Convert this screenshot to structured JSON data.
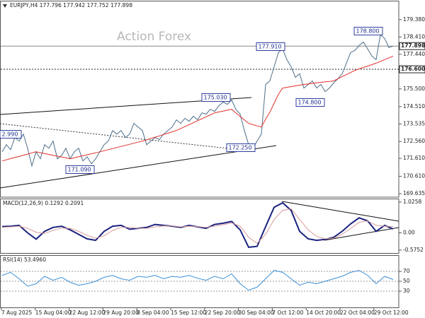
{
  "chart_data": [
    {
      "type": "price",
      "title": "EURJPY,H4  177.796 177.942 177.752 177.898",
      "watermark": "Action Forex",
      "ylim": [
        169.44,
        180.4
      ],
      "yticks": [
        {
          "value": 179.38,
          "label": "179.380"
        },
        {
          "value": 178.41,
          "label": "178.410"
        },
        {
          "value": 177.44,
          "label": "177.440"
        },
        {
          "value": 175.5,
          "label": "175.500"
        },
        {
          "value": 174.51,
          "label": "174.510"
        },
        173.535,
        {
          "value": 172.56,
          "label": "172.560"
        },
        {
          "value": 171.61,
          "label": "171.610"
        },
        {
          "value": 170.61,
          "label": "170.610"
        },
        169.635
      ],
      "levels": [
        {
          "value": 177.898,
          "label": "177.898"
        },
        {
          "value": 176.6,
          "label": "176.600"
        }
      ],
      "annotations": [
        "2.990",
        "171.090",
        "175.030",
        "172.250",
        "177.910",
        "178.800",
        "174.800"
      ],
      "series": [
        {
          "color": "#4d6f8a",
          "values": [
            171.98,
            172.38,
            172.1,
            172.78,
            172.58,
            172.97,
            172.18,
            171.19,
            171.98,
            171.59,
            172.38,
            172.18,
            172.58,
            171.59,
            171.78,
            172.18,
            171.59,
            171.98,
            172.18,
            171.47,
            171.7,
            171.31,
            171.59,
            171.98,
            172.38,
            172.58,
            173.17,
            172.97,
            173.17,
            172.78,
            172.97,
            173.57,
            173.37,
            173.17,
            172.38,
            172.58,
            172.78,
            172.66,
            172.97,
            173.17,
            173.37,
            173.77,
            173.57,
            173.85,
            173.69,
            173.97,
            173.77,
            174.16,
            174.09,
            174.36,
            174.24,
            174.56,
            174.76,
            174.64,
            174.88,
            174.36,
            174.09,
            173.17,
            172.38,
            172.18,
            172.58,
            172.97,
            175.75,
            175.95,
            176.74,
            177.54,
            177.74,
            177.14,
            176.74,
            176.15,
            176.35,
            175.55,
            175.75,
            175.95,
            175.55,
            175.75,
            175.35,
            175.55,
            175.83,
            176.07,
            176.35,
            176.94,
            177.54,
            177.66,
            177.93,
            178.13,
            177.74,
            177.34,
            177.14,
            178.53,
            178.33,
            177.82,
            177.9
          ]
        },
        {
          "color": "#e0302c",
          "values": [
            171.47,
            171.53,
            171.6,
            171.66,
            171.72,
            171.79,
            171.85,
            171.92,
            171.98,
            171.93,
            171.88,
            171.83,
            171.78,
            171.74,
            171.69,
            171.64,
            171.59,
            171.65,
            171.7,
            171.76,
            171.81,
            171.87,
            171.92,
            171.98,
            172.04,
            172.1,
            172.16,
            172.22,
            172.28,
            172.34,
            172.4,
            172.46,
            172.52,
            172.58,
            172.65,
            172.73,
            172.8,
            172.87,
            172.95,
            173.02,
            173.1,
            173.17,
            173.28,
            173.39,
            173.5,
            173.61,
            173.72,
            173.83,
            173.94,
            174.05,
            174.16,
            174.21,
            174.26,
            174.31,
            174.36,
            174.16,
            173.96,
            173.77,
            173.57,
            173.5,
            173.43,
            173.37,
            173.8,
            174.2,
            174.7,
            175.2,
            175.55,
            175.59,
            175.63,
            175.67,
            175.71,
            175.75,
            175.78,
            175.81,
            175.84,
            175.87,
            175.9,
            175.92,
            175.95,
            176.07,
            176.19,
            176.3,
            176.42,
            176.54,
            176.62,
            176.7,
            176.78,
            176.86,
            176.94,
            177.04,
            177.14,
            177.24,
            177.34
          ]
        }
      ]
    },
    {
      "type": "macd",
      "title": "MACD(12,26,9) 0.1292 0.2091",
      "ylim": [
        -0.672,
        1.119
      ],
      "yticks": [
        1.0258,
        {
          "value": 0,
          "label": "0.00"
        },
        -0.5752
      ],
      "series": [
        {
          "color": "#1a237e",
          "values": [
            0.21,
            0.22,
            0.25,
            0.0,
            -0.21,
            0.05,
            0.18,
            0.22,
            0.1,
            -0.05,
            -0.2,
            -0.25,
            0.05,
            0.22,
            0.25,
            0.12,
            0.15,
            0.18,
            0.28,
            0.25,
            0.22,
            0.18,
            0.25,
            0.2,
            0.15,
            0.28,
            0.32,
            0.38,
            0.1,
            -0.48,
            -0.45,
            0.21,
            0.85,
            1.0,
            0.75,
            0.05,
            -0.2,
            -0.25,
            -0.22,
            -0.15,
            0.05,
            0.3,
            0.5,
            0.4,
            0.05,
            0.25,
            0.13
          ]
        },
        {
          "color": "#d99a9a",
          "values": [
            0.18,
            0.2,
            0.22,
            0.15,
            0.02,
            -0.02,
            0.08,
            0.16,
            0.15,
            0.05,
            -0.08,
            -0.18,
            -0.1,
            0.08,
            0.18,
            0.18,
            0.15,
            0.15,
            0.2,
            0.23,
            0.23,
            0.2,
            0.22,
            0.21,
            0.18,
            0.22,
            0.27,
            0.33,
            0.22,
            -0.15,
            -0.35,
            -0.05,
            0.45,
            0.75,
            0.8,
            0.45,
            0.1,
            -0.12,
            -0.2,
            -0.18,
            -0.05,
            0.15,
            0.35,
            0.4,
            0.25,
            0.22,
            0.21
          ]
        }
      ]
    },
    {
      "type": "rsi",
      "title": "RSI(14) 53.4960",
      "ylim": [
        0,
        100
      ],
      "yticks": [
        70,
        50,
        30
      ],
      "grid": true,
      "series": [
        {
          "color": "#3b8fd6",
          "values": [
            62,
            68,
            55,
            40,
            45,
            60,
            52,
            58,
            48,
            42,
            45,
            50,
            58,
            62,
            55,
            52,
            60,
            58,
            62,
            55,
            60,
            58,
            62,
            56,
            52,
            60,
            55,
            65,
            45,
            32,
            38,
            55,
            72,
            68,
            55,
            42,
            48,
            45,
            50,
            55,
            60,
            68,
            72,
            62,
            45,
            60,
            53.5
          ]
        }
      ],
      "x_labels": [
        "7 Aug 2025",
        "15 Aug 04:00",
        "22 Aug 12:00",
        "29 Aug 20:00",
        "8 Sep 04:00",
        "15 Sep 12:00",
        "22 Sep 20:00",
        "30 Sep 04:00",
        "7 Oct 12:00",
        "14 Oct 20:00",
        "22 Oct 04:00",
        "29 Oct 12:00"
      ]
    }
  ]
}
